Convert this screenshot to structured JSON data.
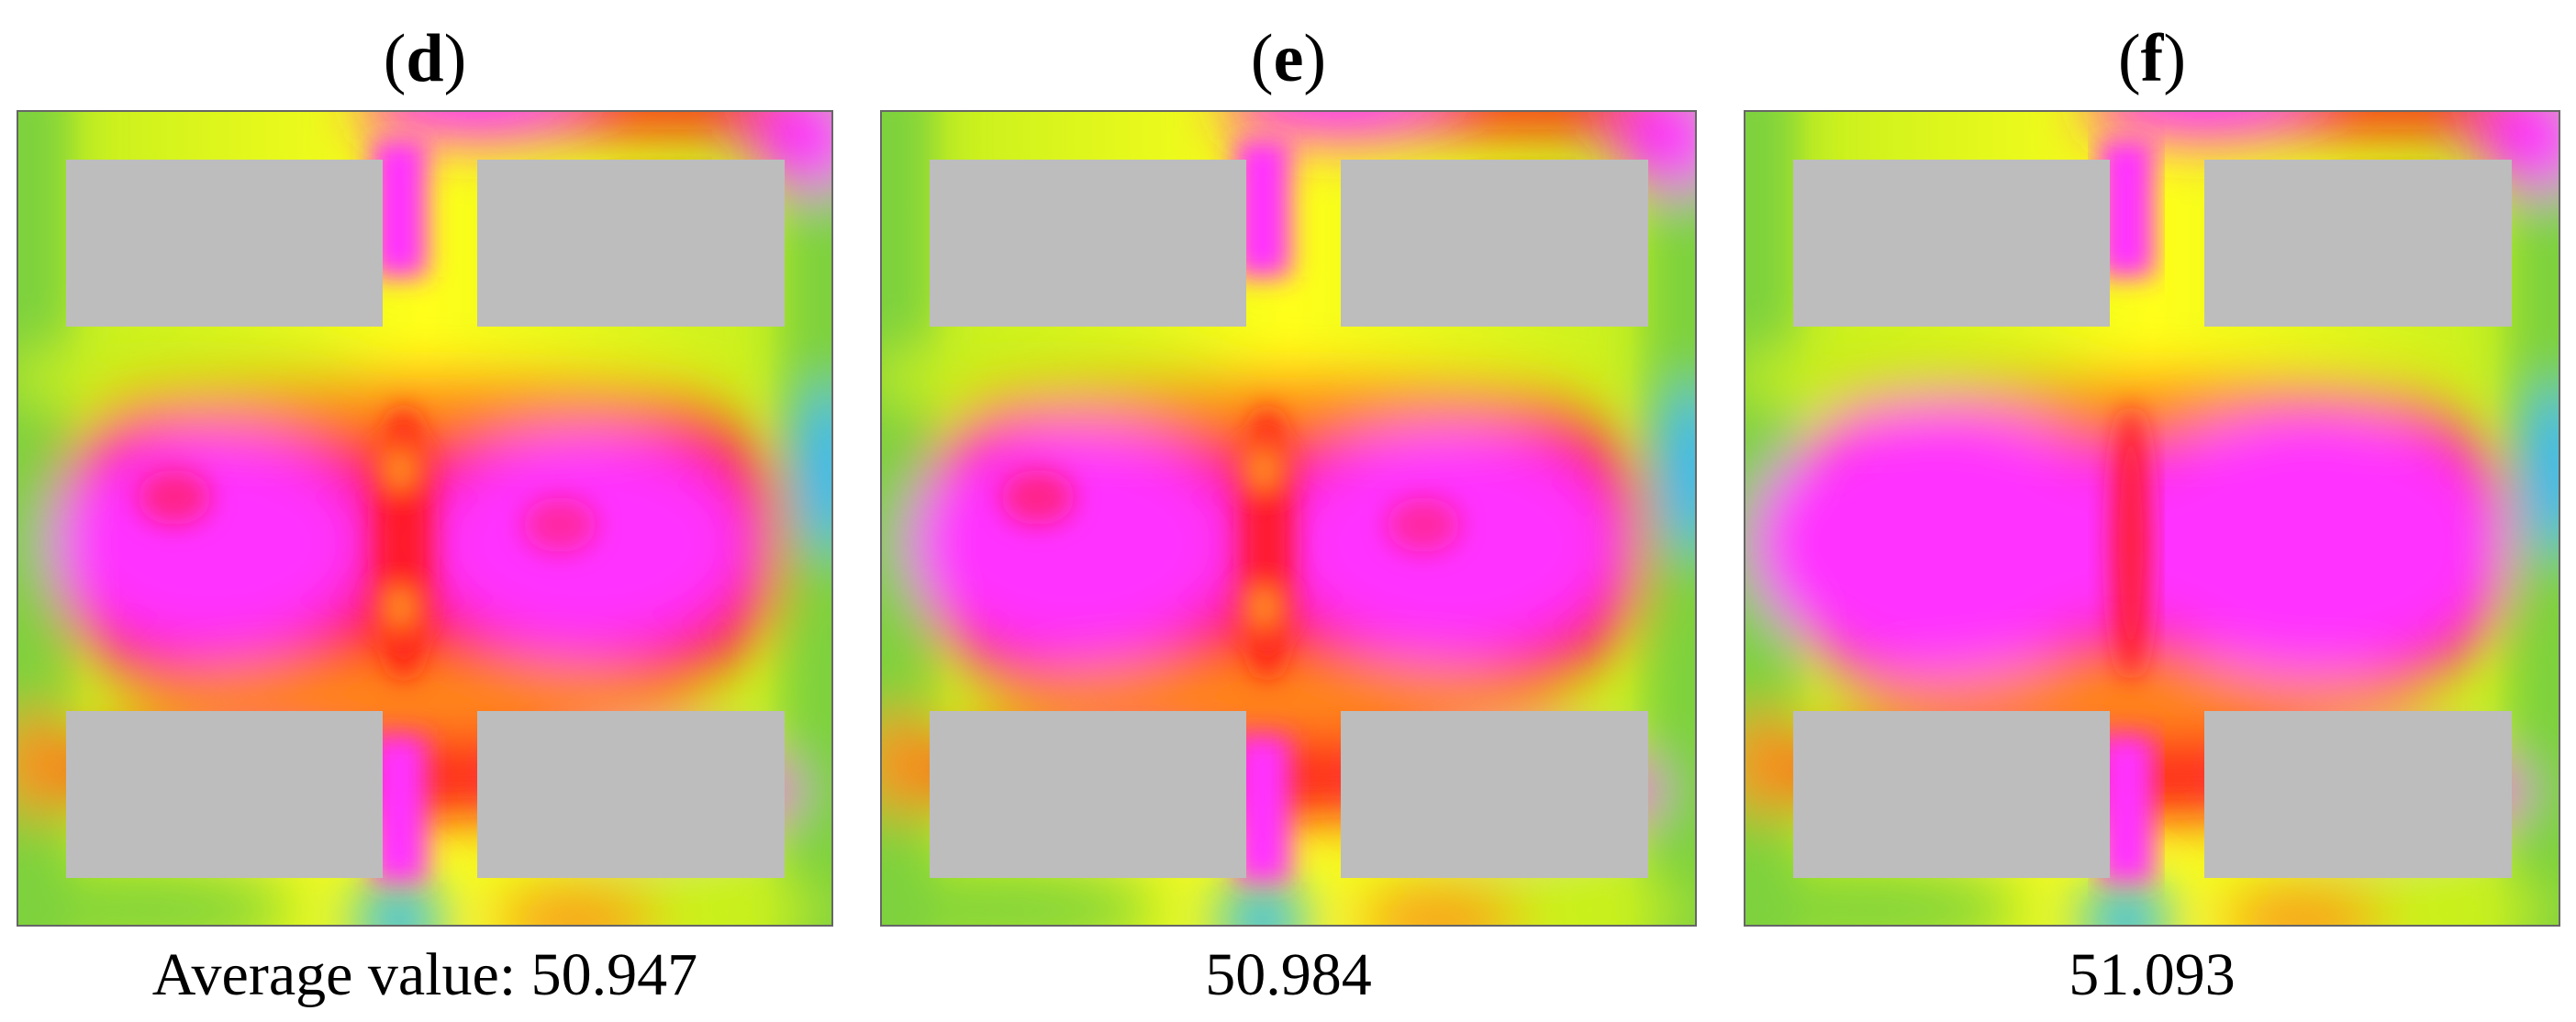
{
  "panels": [
    {
      "id": "d",
      "label": "d",
      "caption": "Average value: 50.947",
      "merge": 0.0
    },
    {
      "id": "e",
      "label": "e",
      "caption": "50.984",
      "merge": 0.25
    },
    {
      "id": "f",
      "label": "f",
      "caption": "51.093",
      "merge": 1.0
    }
  ],
  "colors": {
    "obstacle": "#bdbdbd",
    "magenta": "#ff33ff",
    "red": "#ff1a1a",
    "orange": "#ff8c1a",
    "yellow": "#ffff1a",
    "yellow_green": "#c8f01e",
    "green": "#7ed23c",
    "cyan": "#2ab6ff"
  }
}
